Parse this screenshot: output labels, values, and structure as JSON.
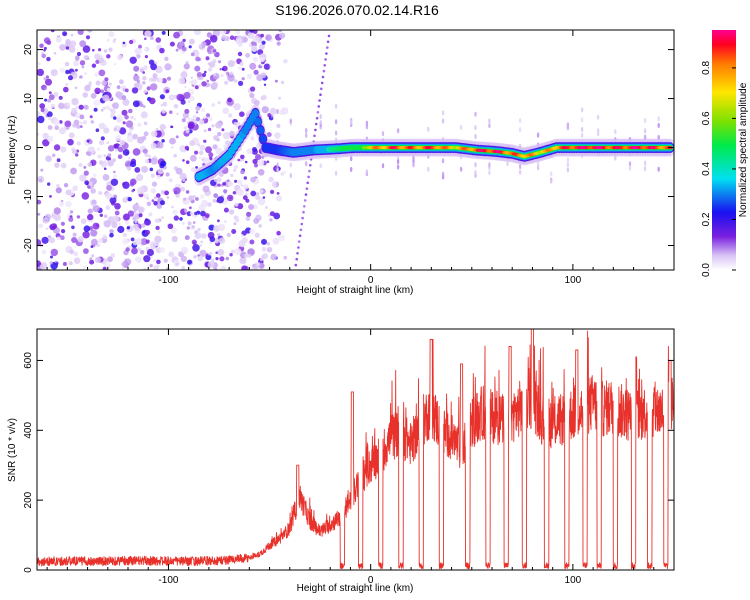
{
  "figure": {
    "title": "S196.2026.070.02.14.R16"
  },
  "chart_data": [
    {
      "type": "heatmap",
      "name": "spectrogram",
      "xlabel": "Height of straight line (km)",
      "ylabel": "Frequency (Hz)",
      "xlim": [
        -165,
        150
      ],
      "ylim": [
        -25,
        24
      ],
      "xticks": [
        -100,
        0,
        100
      ],
      "yticks": [
        -20,
        -10,
        0,
        10,
        20
      ],
      "colorbar": {
        "label": "Normalized spectral amplitude",
        "range": [
          0.0,
          0.95
        ],
        "ticks": [
          0.0,
          0.2,
          0.4,
          0.6,
          0.8
        ],
        "tick_labels": [
          "0.0",
          "0.2",
          "0.4",
          "0.6",
          "0.8"
        ]
      },
      "noise_region": {
        "x_range": [
          -165,
          -52
        ],
        "y_range": [
          -25,
          24
        ],
        "typical_amplitude": 0.15
      },
      "ridge": [
        {
          "x": -85,
          "y": -6,
          "amp": 0.35
        },
        {
          "x": -78,
          "y": -4.5,
          "amp": 0.3
        },
        {
          "x": -70,
          "y": -1.5,
          "amp": 0.35
        },
        {
          "x": -66,
          "y": 1,
          "amp": 0.35
        },
        {
          "x": -62,
          "y": 3.5,
          "amp": 0.3
        },
        {
          "x": -57,
          "y": 7,
          "amp": 0.3
        },
        {
          "x": -52,
          "y": 0,
          "amp": 0.25
        },
        {
          "x": -46,
          "y": -0.5,
          "amp": 0.25
        },
        {
          "x": -38,
          "y": -1,
          "amp": 0.3
        },
        {
          "x": -28,
          "y": -0.5,
          "amp": 0.3
        },
        {
          "x": -18,
          "y": -0.3,
          "amp": 0.45
        },
        {
          "x": -8,
          "y": 0,
          "amp": 0.55
        },
        {
          "x": 2,
          "y": 0,
          "amp": 0.75
        },
        {
          "x": 12,
          "y": 0,
          "amp": 0.85
        },
        {
          "x": 22,
          "y": 0,
          "amp": 0.8
        },
        {
          "x": 32,
          "y": 0,
          "amp": 0.85
        },
        {
          "x": 42,
          "y": 0,
          "amp": 0.7
        },
        {
          "x": 52,
          "y": -0.5,
          "amp": 0.85
        },
        {
          "x": 62,
          "y": -0.8,
          "amp": 0.9
        },
        {
          "x": 70,
          "y": -1.2,
          "amp": 0.8
        },
        {
          "x": 76,
          "y": -1.8,
          "amp": 0.8
        },
        {
          "x": 84,
          "y": -1,
          "amp": 0.7
        },
        {
          "x": 92,
          "y": 0,
          "amp": 0.8
        },
        {
          "x": 102,
          "y": 0,
          "amp": 0.9
        },
        {
          "x": 112,
          "y": 0,
          "amp": 0.92
        },
        {
          "x": 122,
          "y": 0,
          "amp": 0.85
        },
        {
          "x": 132,
          "y": 0,
          "amp": 0.92
        },
        {
          "x": 142,
          "y": 0,
          "amp": 0.85
        },
        {
          "x": 148,
          "y": 0,
          "amp": 0.8
        }
      ]
    },
    {
      "type": "line",
      "name": "snr",
      "xlabel": "Height of straight line (km)",
      "ylabel": "SNR (10 * v/v)",
      "xlim": [
        -165,
        150
      ],
      "ylim": [
        0,
        690
      ],
      "xticks": [
        -100,
        0,
        100
      ],
      "yticks": [
        0,
        200,
        400,
        600
      ],
      "color": "#e8312a",
      "x": [
        -165,
        -150,
        -135,
        -120,
        -105,
        -90,
        -75,
        -60,
        -55,
        -50,
        -45,
        -40,
        -35,
        -30,
        -25,
        -20,
        -15,
        -10,
        -5,
        0,
        5,
        10,
        15,
        20,
        25,
        30,
        35,
        40,
        45,
        50,
        55,
        60,
        65,
        70,
        75,
        80,
        85,
        90,
        95,
        100,
        105,
        110,
        115,
        120,
        125,
        130,
        135,
        140,
        145,
        150
      ],
      "y": [
        25,
        27,
        26,
        28,
        27,
        26,
        28,
        35,
        45,
        70,
        90,
        120,
        210,
        140,
        110,
        130,
        150,
        200,
        260,
        300,
        330,
        380,
        390,
        360,
        420,
        460,
        400,
        380,
        340,
        420,
        450,
        440,
        430,
        440,
        470,
        490,
        430,
        420,
        430,
        450,
        460,
        480,
        460,
        470,
        450,
        440,
        450,
        460,
        450,
        480
      ],
      "dropouts": [
        -14,
        -5,
        5,
        15,
        25,
        35,
        48,
        58,
        67,
        76,
        87,
        97,
        106,
        113,
        121,
        130,
        138,
        146
      ],
      "peaks": [
        {
          "x": -36,
          "y": 300
        },
        {
          "x": -9,
          "y": 510
        },
        {
          "x": 30,
          "y": 660
        },
        {
          "x": 45,
          "y": 590
        },
        {
          "x": 69,
          "y": 640
        },
        {
          "x": 80,
          "y": 690
        },
        {
          "x": 102,
          "y": 630
        },
        {
          "x": 131,
          "y": 610
        },
        {
          "x": 148,
          "y": 600
        }
      ]
    }
  ]
}
